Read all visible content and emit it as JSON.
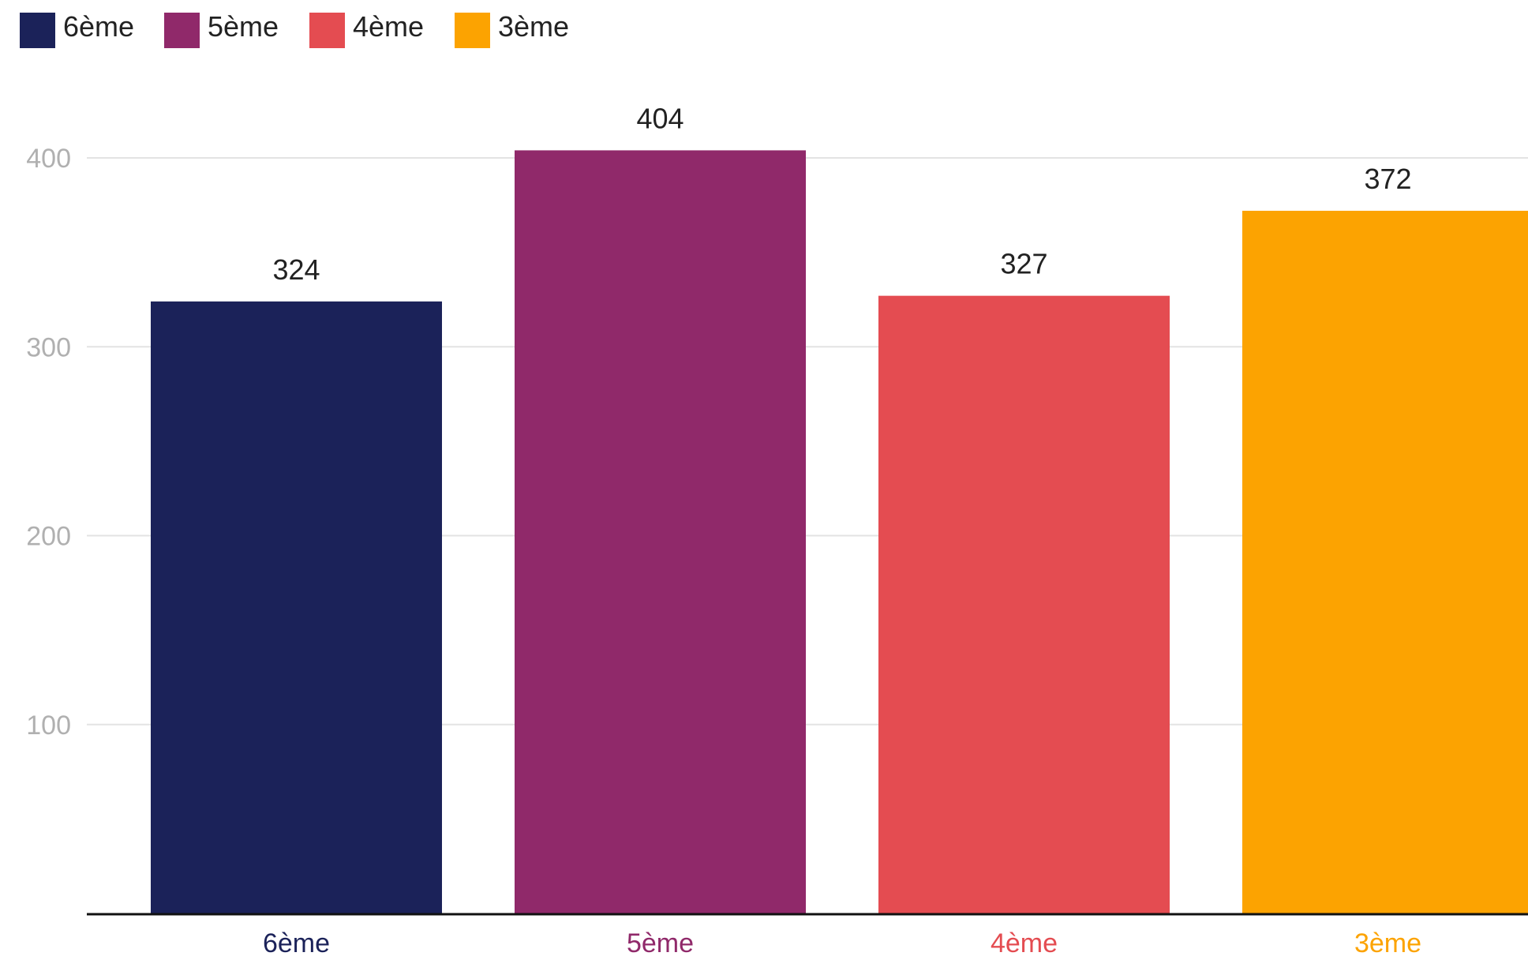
{
  "chart_data": {
    "type": "bar",
    "categories": [
      "6ème",
      "5ème",
      "4ème",
      "3ème"
    ],
    "values": [
      324,
      404,
      327,
      372
    ],
    "colors": [
      "#1b2259",
      "#90296a",
      "#e44c51",
      "#fca301"
    ],
    "legend": {
      "placement": "top-left",
      "entries": [
        "6ème",
        "5ème",
        "4ème",
        "3ème"
      ]
    },
    "yaxis": {
      "ticks": [
        100,
        200,
        300,
        400
      ],
      "ylim": [
        0,
        402
      ],
      "grid": true
    },
    "data_labels": true,
    "title": "",
    "xlabel": "",
    "ylabel": ""
  }
}
